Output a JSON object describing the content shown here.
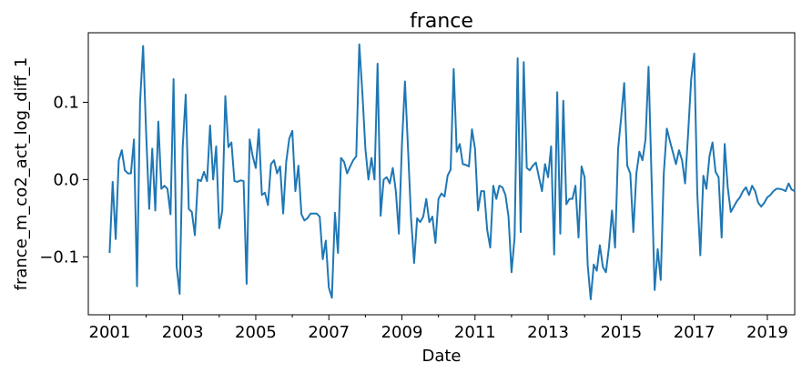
{
  "chart_data": {
    "type": "line",
    "title": "france",
    "xlabel": "Date",
    "ylabel": "france_m_co2_act_log_diff_1",
    "xlim": [
      "2000-06",
      "2019-10"
    ],
    "ylim": [
      -0.175,
      0.19
    ],
    "x_tick_labels": [
      "2001",
      "2003",
      "2005",
      "2007",
      "2009",
      "2011",
      "2013",
      "2015",
      "2017",
      "2019"
    ],
    "y_tick_labels": [
      "−0.1",
      "0.0",
      "0.1"
    ],
    "y_ticks": [
      -0.1,
      0.0,
      0.1
    ],
    "grid": false,
    "legend": "none",
    "color": "#1f77b4",
    "series": [
      {
        "start": "2001-01",
        "frequency": "monthly",
        "values": [
          -0.095,
          -0.003,
          -0.077,
          0.025,
          0.038,
          0.012,
          0.008,
          0.008,
          0.052,
          -0.138,
          0.1,
          0.173,
          0.06,
          -0.038,
          0.04,
          -0.04,
          0.075,
          -0.012,
          -0.008,
          -0.012,
          -0.045,
          0.13,
          -0.112,
          -0.148,
          0.042,
          0.11,
          -0.038,
          -0.042,
          -0.072,
          0.0,
          -0.002,
          0.01,
          -0.002,
          0.07,
          0.0,
          0.043,
          -0.063,
          -0.04,
          0.108,
          0.042,
          0.048,
          -0.002,
          -0.003,
          -0.001,
          -0.002,
          -0.135,
          0.052,
          0.03,
          0.015,
          0.065,
          -0.02,
          -0.017,
          -0.033,
          0.02,
          0.025,
          0.008,
          0.017,
          -0.044,
          0.023,
          0.053,
          0.063,
          -0.015,
          0.018,
          -0.045,
          -0.053,
          -0.05,
          -0.044,
          -0.044,
          -0.044,
          -0.048,
          -0.103,
          -0.079,
          -0.14,
          -0.153,
          -0.043,
          -0.095,
          0.028,
          0.023,
          0.008,
          0.017,
          0.025,
          0.03,
          0.175,
          0.113,
          0.04,
          0.0,
          0.028,
          0.0,
          0.15,
          -0.047,
          0.0,
          0.003,
          -0.005,
          0.015,
          -0.015,
          -0.07,
          0.045,
          0.127,
          0.04,
          -0.05,
          -0.108,
          -0.05,
          -0.055,
          -0.048,
          -0.025,
          -0.055,
          -0.048,
          -0.082,
          -0.025,
          -0.018,
          -0.022,
          0.005,
          0.013,
          0.143,
          0.036,
          0.046,
          0.02,
          0.019,
          0.017,
          0.065,
          0.04,
          -0.04,
          -0.015,
          -0.015,
          -0.065,
          -0.088,
          -0.008,
          -0.025,
          -0.008,
          -0.01,
          -0.02,
          -0.048,
          -0.12,
          -0.075,
          0.157,
          -0.068,
          0.152,
          0.015,
          0.012,
          0.018,
          0.022,
          0.003,
          -0.015,
          0.02,
          0.003,
          0.043,
          -0.097,
          0.113,
          -0.07,
          0.102,
          -0.032,
          -0.025,
          -0.025,
          -0.008,
          -0.075,
          0.017,
          0.003,
          -0.11,
          -0.155,
          -0.11,
          -0.118,
          -0.085,
          -0.113,
          -0.12,
          -0.087,
          -0.04,
          -0.088,
          0.04,
          0.08,
          0.125,
          0.018,
          0.008,
          -0.068,
          0.008,
          0.036,
          0.025,
          0.052,
          0.146,
          0.0,
          -0.143,
          -0.09,
          -0.13,
          0.008,
          0.066,
          0.05,
          0.035,
          0.02,
          0.038,
          0.025,
          -0.005,
          0.06,
          0.13,
          0.163,
          -0.018,
          -0.098,
          0.005,
          -0.012,
          0.03,
          0.048,
          0.01,
          0.003,
          -0.075,
          0.046,
          -0.01,
          -0.042,
          -0.035,
          -0.028,
          -0.023,
          -0.015,
          -0.01,
          -0.02,
          -0.008,
          -0.015,
          -0.03,
          -0.035,
          -0.03,
          -0.023,
          -0.02,
          -0.015,
          -0.012,
          -0.012,
          -0.013,
          -0.015,
          -0.005,
          -0.013,
          -0.015
        ]
      }
    ]
  }
}
